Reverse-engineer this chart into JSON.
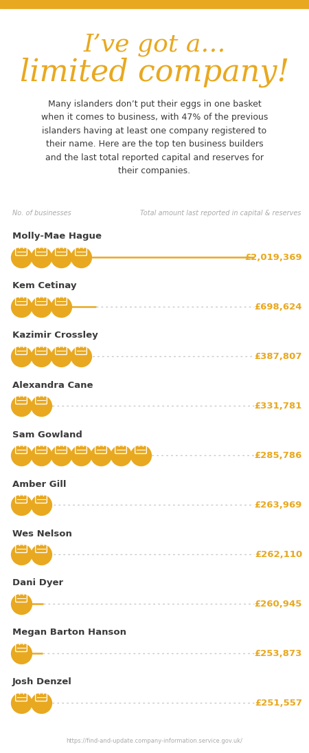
{
  "title_line1": "I’ve got a…",
  "title_line2": "limited company!",
  "subtitle": "Many islanders don’t put their eggs in one basket\nwhen it comes to business, with 47% of the previous\nislanders having at least one company registered to\ntheir name. Here are the top ten business builders\nand the last total reported capital and reserves for\ntheir companies.",
  "label_left": "No. of businesses",
  "label_right": "Total amount last reported in capital & reserves",
  "footer": "https://find-and-update.company-information.service.gov.uk/",
  "contestants": [
    {
      "name": "Molly-Mae Hague",
      "companies": 4,
      "amount": "£2,019,369",
      "value": 2019369
    },
    {
      "name": "Kem Cetinay",
      "companies": 3,
      "amount": "£698,624",
      "value": 698624
    },
    {
      "name": "Kazimir Crossley",
      "companies": 4,
      "amount": "£387,807",
      "value": 387807
    },
    {
      "name": "Alexandra Cane",
      "companies": 2,
      "amount": "£331,781",
      "value": 331781
    },
    {
      "name": "Sam Gowland",
      "companies": 7,
      "amount": "£285,786",
      "value": 285786
    },
    {
      "name": "Amber Gill",
      "companies": 2,
      "amount": "£263,969",
      "value": 263969
    },
    {
      "name": "Wes Nelson",
      "companies": 2,
      "amount": "£262,110",
      "value": 262110
    },
    {
      "name": "Dani Dyer",
      "companies": 1,
      "amount": "£260,945",
      "value": 260945
    },
    {
      "name": "Megan Barton Hanson",
      "companies": 1,
      "amount": "£253,873",
      "value": 253873
    },
    {
      "name": "Josh Denzel",
      "companies": 2,
      "amount": "£251,557",
      "value": 251557
    }
  ],
  "gold_color": "#E8A820",
  "text_color": "#3a3a3a",
  "amount_color": "#E8A820",
  "bg_color": "#FFFFFF",
  "max_value": 2019369
}
